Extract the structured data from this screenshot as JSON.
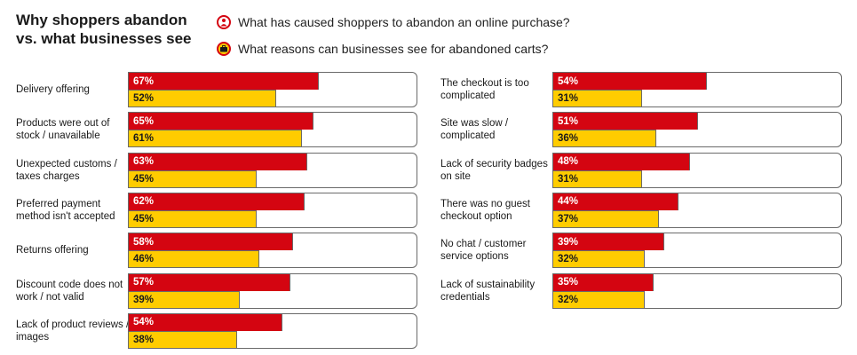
{
  "title_line1": "Why shoppers abandon",
  "title_line2": "vs. what businesses see",
  "legend": {
    "shopper": "What has caused shoppers to abandon an online purchase?",
    "business": "What reasons can businesses see for abandoned carts?",
    "shopper_icon": "person-icon",
    "business_icon": "briefcase-icon"
  },
  "colors": {
    "shopper": "#d40511",
    "business": "#ffcc00"
  },
  "chart_data": {
    "type": "bar",
    "orientation": "horizontal",
    "xlim": [
      0,
      100
    ],
    "unit": "%",
    "series": [
      {
        "name": "What has caused shoppers to abandon an online purchase?",
        "color": "#d40511"
      },
      {
        "name": "What reasons can businesses see for abandoned carts?",
        "color": "#ffcc00"
      }
    ],
    "left_column": [
      {
        "label": "Delivery offering",
        "shopper": 67,
        "business": 52,
        "shopper_label": "67%",
        "business_label": "52%"
      },
      {
        "label": "Products were out of stock / unavailable",
        "shopper": 65,
        "business": 61,
        "shopper_label": "65%",
        "business_label": "61%"
      },
      {
        "label": "Unexpected customs / taxes charges",
        "shopper": 63,
        "business": 45,
        "shopper_label": "63%",
        "business_label": "45%"
      },
      {
        "label": "Preferred payment method isn't accepted",
        "shopper": 62,
        "business": 45,
        "shopper_label": "62%",
        "business_label": "45%"
      },
      {
        "label": "Returns offering",
        "shopper": 58,
        "business": 46,
        "shopper_label": "58%",
        "business_label": "46%"
      },
      {
        "label": "Discount code does not work / not valid",
        "shopper": 57,
        "business": 39,
        "shopper_label": "57%",
        "business_label": "39%"
      },
      {
        "label": "Lack of product reviews / images",
        "shopper": 54,
        "business": 38,
        "shopper_label": "54%",
        "business_label": "38%"
      }
    ],
    "right_column": [
      {
        "label": "The checkout is too complicated",
        "shopper": 54,
        "business": 31,
        "shopper_label": "54%",
        "business_label": "31%"
      },
      {
        "label": "Site was slow / complicated",
        "shopper": 51,
        "business": 36,
        "shopper_label": "51%",
        "business_label": "36%"
      },
      {
        "label": "Lack of security badges on site",
        "shopper": 48,
        "business": 31,
        "shopper_label": "48%",
        "business_label": "31%"
      },
      {
        "label": "There was no guest checkout option",
        "shopper": 44,
        "business": 37,
        "shopper_label": "44%",
        "business_label": "37%"
      },
      {
        "label": "No chat / customer service options",
        "shopper": 39,
        "business": 32,
        "shopper_label": "39%",
        "business_label": "32%"
      },
      {
        "label": "Lack of sustainability credentials",
        "shopper": 35,
        "business": 32,
        "shopper_label": "35%",
        "business_label": "32%"
      }
    ]
  }
}
